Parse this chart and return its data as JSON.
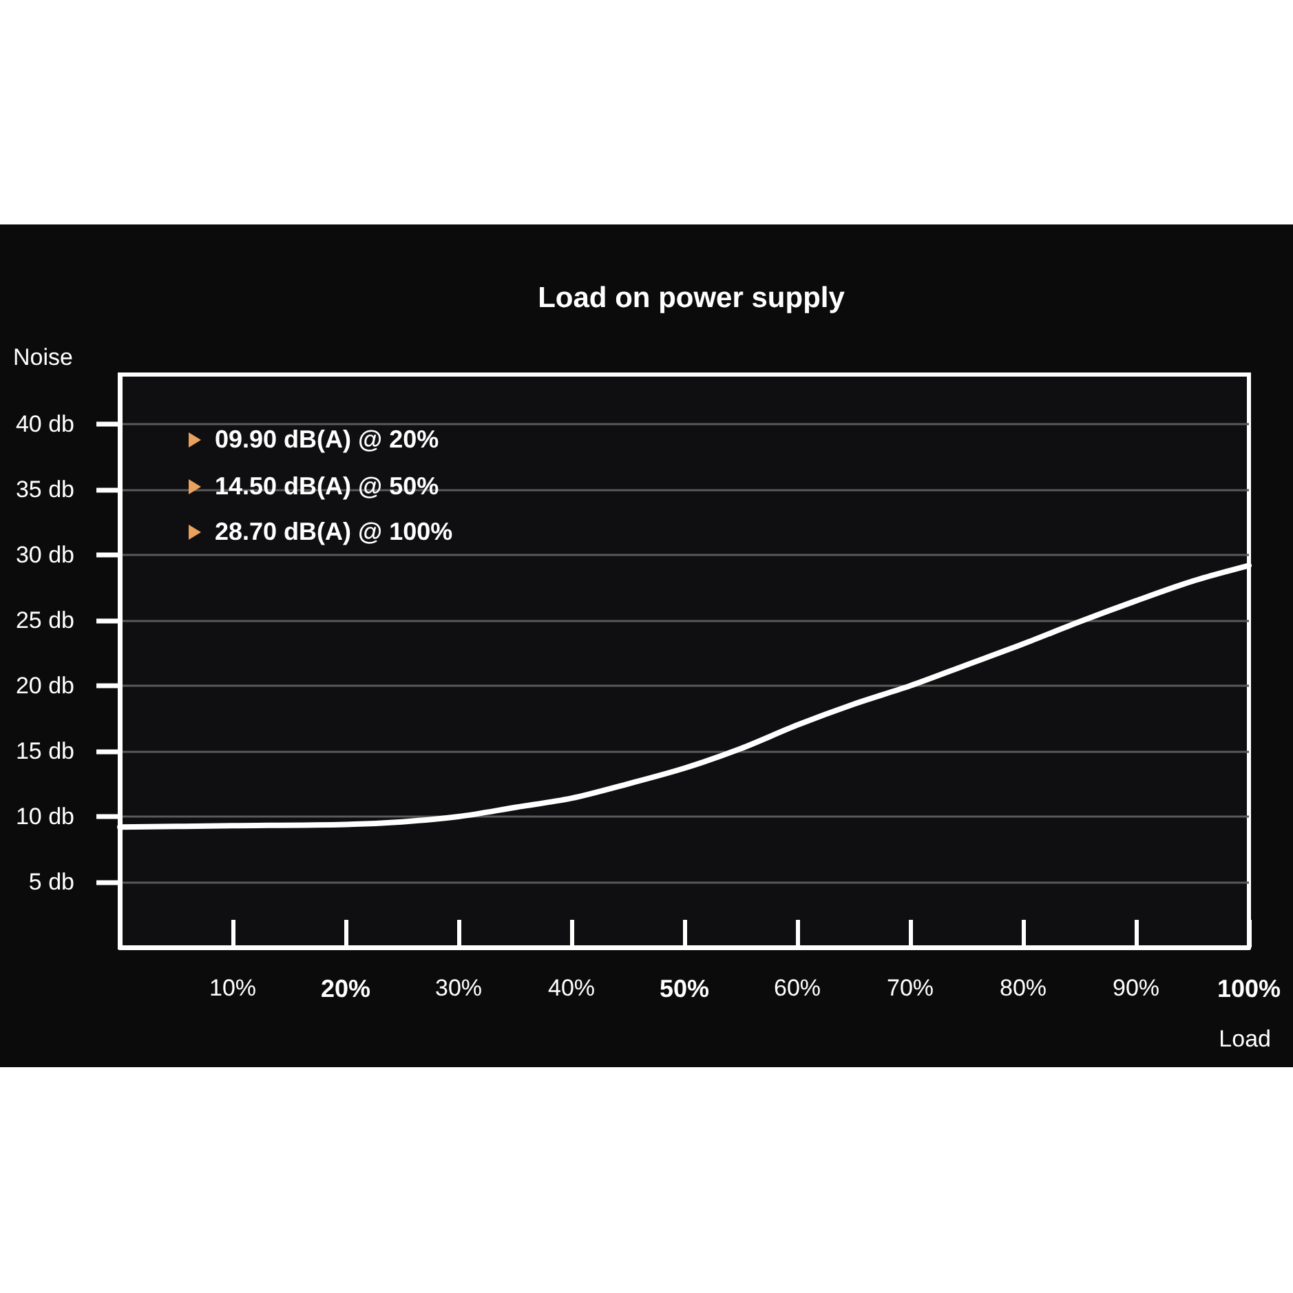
{
  "chart_data": {
    "type": "line",
    "title": "Load on power supply",
    "xlabel": "Load",
    "ylabel": "Noise",
    "x": [
      0,
      10,
      20,
      25,
      30,
      35,
      40,
      45,
      50,
      55,
      60,
      65,
      70,
      75,
      80,
      85,
      90,
      95,
      100
    ],
    "values": [
      9.2,
      9.3,
      9.4,
      9.6,
      10.0,
      10.7,
      11.4,
      12.5,
      13.7,
      15.2,
      17.0,
      18.6,
      20.0,
      21.6,
      23.2,
      24.9,
      26.5,
      28.0,
      29.2
    ],
    "color": "#ffffff",
    "xlim": [
      0,
      100
    ],
    "xticks": [
      {
        "value": 10,
        "label": "10%"
      },
      {
        "value": 20,
        "label": "20%"
      },
      {
        "value": 30,
        "label": "30%"
      },
      {
        "value": 40,
        "label": "40%"
      },
      {
        "value": 50,
        "label": "50%"
      },
      {
        "value": 60,
        "label": "60%"
      },
      {
        "value": 70,
        "label": "70%"
      },
      {
        "value": 80,
        "label": "80%"
      },
      {
        "value": 90,
        "label": "90%"
      },
      {
        "value": 100,
        "label": "100%"
      }
    ],
    "ylim": [
      0,
      43.8
    ],
    "yticks": [
      {
        "value": 5,
        "label": "5 db"
      },
      {
        "value": 10,
        "label": "10 db"
      },
      {
        "value": 15,
        "label": "15 db"
      },
      {
        "value": 20,
        "label": "20 db"
      },
      {
        "value": 25,
        "label": "25 db"
      },
      {
        "value": 30,
        "label": "30 db"
      },
      {
        "value": 35,
        "label": "35 db"
      },
      {
        "value": 40,
        "label": "40 db"
      }
    ],
    "grid": "y",
    "annotations": [
      "09.90 dB(A) @ 20%",
      "14.50 dB(A) @ 50%",
      "28.70 dB(A) @ 100%"
    ]
  }
}
